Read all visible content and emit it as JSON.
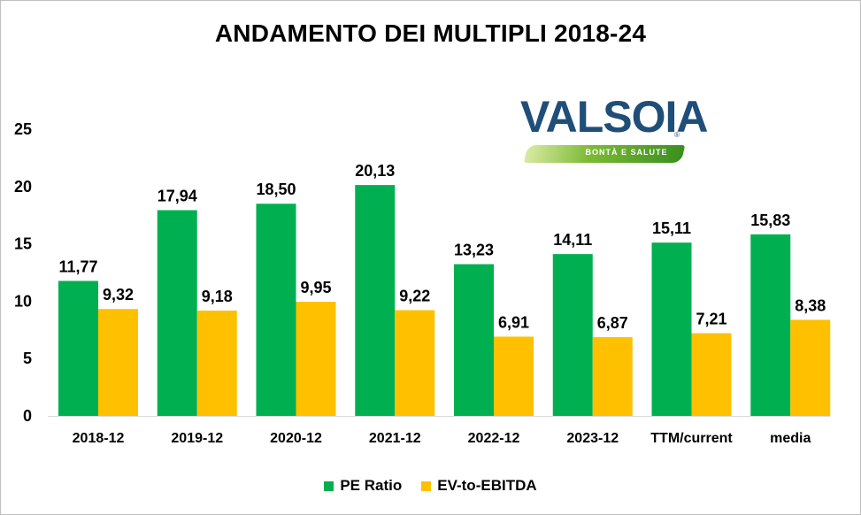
{
  "chart_data": {
    "type": "bar",
    "title": "ANDAMENTO DEI MULTIPLI 2018-24",
    "categories": [
      "2018-12",
      "2019-12",
      "2020-12",
      "2021-12",
      "2022-12",
      "2023-12",
      "TTM/current",
      "media"
    ],
    "series": [
      {
        "name": "PE Ratio",
        "color": "#00b050",
        "values": [
          11.77,
          17.94,
          18.5,
          20.13,
          13.23,
          14.11,
          15.11,
          15.83
        ],
        "labels": [
          "11,77",
          "17,94",
          "18,50",
          "20,13",
          "13,23",
          "14,11",
          "15,11",
          "15,83"
        ]
      },
      {
        "name": "EV-to-EBITDA",
        "color": "#ffc000",
        "values": [
          9.32,
          9.18,
          9.95,
          9.22,
          6.91,
          6.87,
          7.21,
          8.38
        ],
        "labels": [
          "9,32",
          "9,18",
          "9,95",
          "9,22",
          "6,91",
          "6,87",
          "7,21",
          "8,38"
        ]
      }
    ],
    "yticks": [
      "0",
      "5",
      "10",
      "15",
      "20",
      "25"
    ],
    "ylim": [
      0,
      25
    ],
    "grid": false,
    "legend_position": "bottom"
  },
  "logo": {
    "name": "VALSOIA",
    "tagline": "BONTÀ E SALUTE",
    "reg": "®"
  }
}
